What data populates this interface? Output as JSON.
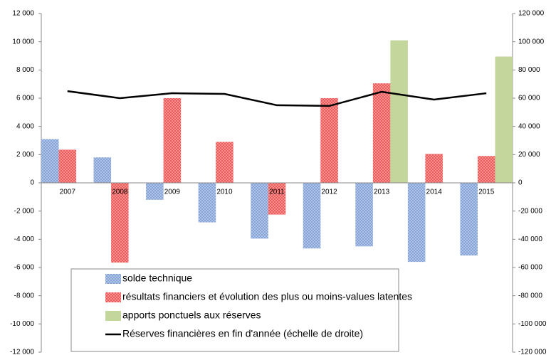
{
  "chart_data": {
    "type": "bar",
    "categories": [
      "2007",
      "2008",
      "2009",
      "2010",
      "2011",
      "2012",
      "2013",
      "2014",
      "2015"
    ],
    "series": [
      {
        "name": "solde technique",
        "color": "#7f9fd6",
        "values": [
          3100,
          1800,
          -1200,
          -2800,
          -3950,
          -4650,
          -4500,
          -5600,
          -5150
        ]
      },
      {
        "name": "résultats financiers et évolution des plus ou moins-values latentes",
        "color": "#f05050",
        "values": [
          2350,
          -5650,
          6000,
          2900,
          -2250,
          6000,
          7050,
          2050,
          1900
        ]
      },
      {
        "name": "apports ponctuels aux réserves",
        "color": "#c3d69b",
        "values": [
          null,
          null,
          null,
          null,
          null,
          null,
          10100,
          null,
          8950
        ]
      },
      {
        "name": "Réserves financières en fin d'année (échelle de droite)",
        "color": "#000000",
        "type": "line",
        "axis": "y2",
        "values": [
          65000,
          60000,
          63500,
          63000,
          55000,
          54500,
          64500,
          59000,
          63500
        ]
      }
    ],
    "ylim": [
      -12000,
      12000
    ],
    "yticks": [
      {
        "value": -12000,
        "label": "-12 000"
      },
      {
        "value": -10000,
        "label": "-10 000"
      },
      {
        "value": -8000,
        "label": "-8 000"
      },
      {
        "value": -6000,
        "label": "-6 000"
      },
      {
        "value": -4000,
        "label": "-4 000"
      },
      {
        "value": -2000,
        "label": "-2 000"
      },
      0,
      {
        "value": 2000,
        "label": "2 000"
      },
      {
        "value": 4000,
        "label": "4 000"
      },
      {
        "value": 6000,
        "label": "6 000"
      },
      {
        "value": 8000,
        "label": "8 000"
      },
      {
        "value": 10000,
        "label": "10 000"
      },
      {
        "value": 12000,
        "label": "12 000"
      }
    ],
    "y2lim": [
      -120000,
      120000
    ],
    "y2ticks": [
      {
        "value": -120000,
        "label": "-120 000"
      },
      {
        "value": -100000,
        "label": "-100 000"
      },
      {
        "value": -80000,
        "label": "-80 000"
      },
      {
        "value": -60000,
        "label": "-60 000"
      },
      {
        "value": -40000,
        "label": "-40 000"
      },
      {
        "value": -20000,
        "label": "-20 000"
      },
      0,
      {
        "value": 20000,
        "label": "20 000"
      },
      {
        "value": 40000,
        "label": "40 000"
      },
      {
        "value": 60000,
        "label": "60 000"
      },
      {
        "value": 80000,
        "label": "80 000"
      },
      {
        "value": 100000,
        "label": "100 000"
      },
      {
        "value": 120000,
        "label": "120 000"
      }
    ],
    "grid": false,
    "legend": "bottom"
  }
}
